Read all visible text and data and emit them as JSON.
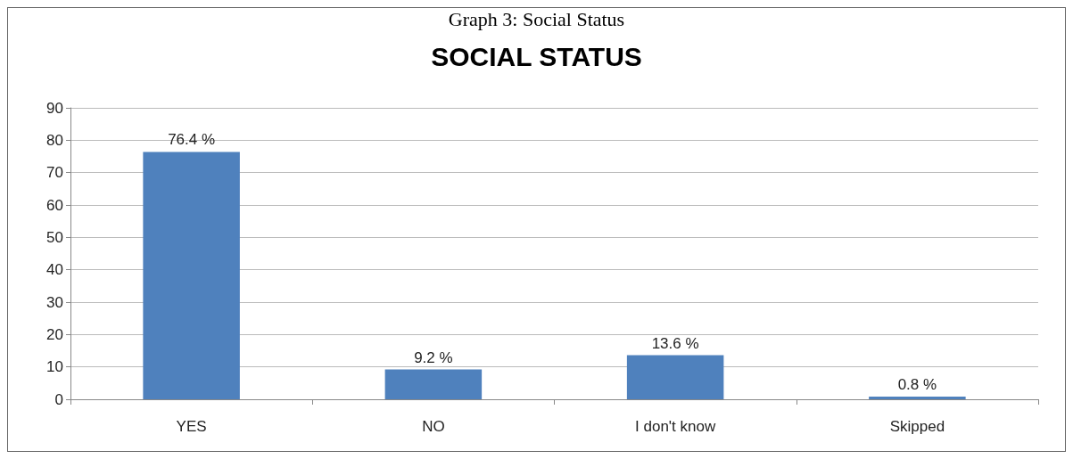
{
  "chart_data": {
    "type": "bar",
    "title": "SOCIAL STATUS",
    "annotations": [
      "Graph 3: Social Status"
    ],
    "categories": [
      "YES",
      "NO",
      "I don't know",
      "Skipped"
    ],
    "values": [
      76.4,
      9.2,
      13.6,
      0.8
    ],
    "value_labels": [
      "76.4 %",
      "9.2 %",
      "13.6 %",
      "0.8 %"
    ],
    "color": "#4f81bd",
    "ylim": [
      0,
      90
    ],
    "yticks": [
      0,
      10,
      20,
      30,
      40,
      50,
      60,
      70,
      80,
      90
    ],
    "grid": "y"
  }
}
